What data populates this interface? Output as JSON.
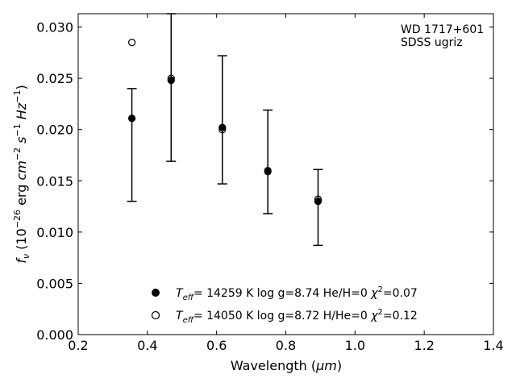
{
  "chart_data": {
    "type": "scatter",
    "xlabel_main": "Wavelength (",
    "xlabel_unit": "μm",
    "xlabel_close": ")",
    "ylabel_f": "f",
    "ylabel_nu": "ν",
    "ylabel_open": " (10",
    "ylabel_exp26": "−26",
    "ylabel_erg": " erg ",
    "ylabel_cm": "cm",
    "ylabel_exp2": "−2",
    "ylabel_s": " s",
    "ylabel_exp1a": "−1",
    "ylabel_hz": " Hz",
    "ylabel_exp1b": "−1",
    "ylabel_close": ")",
    "xlim": [
      0.2,
      1.4
    ],
    "ylim": [
      0.0,
      0.0313
    ],
    "xticks": [
      "0.2",
      "0.4",
      "0.6",
      "0.8",
      "1.0",
      "1.2",
      "1.4"
    ],
    "yticks": [
      "0.000",
      "0.005",
      "0.010",
      "0.015",
      "0.020",
      "0.025",
      "0.030"
    ],
    "annotation": [
      "WD 1717+601",
      "SDSS ugriz"
    ],
    "observed": {
      "x": [
        0.3551,
        0.4686,
        0.6166,
        0.748,
        0.8932
      ],
      "y": [
        0.0211,
        0.0248,
        0.0202,
        0.016,
        0.013
      ],
      "yerr_low": [
        0.013,
        0.0169,
        0.0147,
        0.0118,
        0.0087
      ],
      "yerr_high": [
        0.024,
        0.0313,
        0.0272,
        0.0219,
        0.0161
      ]
    },
    "series": [
      {
        "marker": "filled-circle",
        "legend": {
          "teff": "T",
          "teff_sub": "eff",
          "rest": "= 14259 K  log g=8.74  He/H=0  ",
          "chi": "χ",
          "chi_sup": "2",
          "chi_val": "=0.07"
        },
        "x": [
          0.3551,
          0.4686,
          0.6166,
          0.748,
          0.8932
        ],
        "y": [
          0.0211,
          0.0248,
          0.0202,
          0.016,
          0.013
        ]
      },
      {
        "marker": "open-circle",
        "legend": {
          "teff": "T",
          "teff_sub": "eff",
          "rest": "= 14050 K  log g=8.72  H/He=0  ",
          "chi": "χ",
          "chi_sup": "2",
          "chi_val": "=0.12"
        },
        "x": [
          0.3551,
          0.4686,
          0.6166,
          0.748,
          0.8932
        ],
        "y": [
          0.0285,
          0.025,
          0.02,
          0.0159,
          0.0132
        ]
      }
    ],
    "grid": false,
    "legend_position": "bottom-center"
  }
}
